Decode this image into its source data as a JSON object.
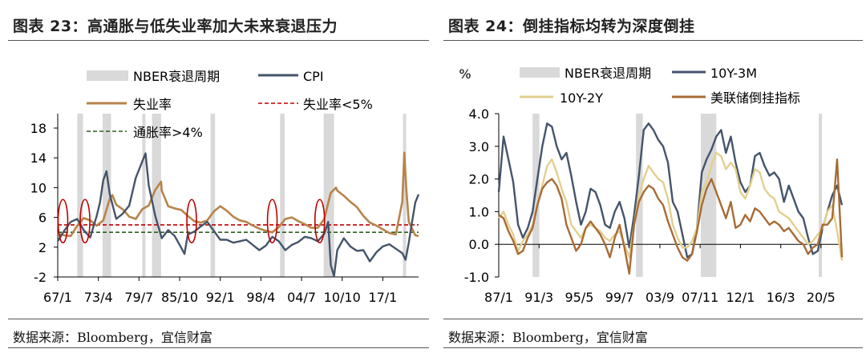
{
  "left_panel": {
    "title": "图表 23：高通胀与低失业率加大未来衰退压力",
    "source": "数据来源：Bloomberg，宜信财富"
  },
  "right_panel": {
    "title": "图表 24：倒挂指标均转为深度倒挂",
    "source": "数据来源：Bloomberg，宜信财富"
  },
  "colors": {
    "recession": "#d9d9d9",
    "cpi": "#44546a",
    "unemployment": "#b8834a",
    "threshold_unemp": "#c00000",
    "threshold_cpi": "#2e5e1e",
    "spread_10y3m": "#44546a",
    "spread_10y2y": "#e3cf8f",
    "fed_inversion": "#a86b35",
    "circle": "#c00000"
  },
  "chart_data": [
    {
      "type": "line",
      "ylim": [
        -2,
        18
      ],
      "yticks": [
        "18",
        "14",
        "10",
        "6",
        "2",
        "-2"
      ],
      "xticks": [
        "67/1",
        "73/4",
        "79/7",
        "85/10",
        "92/1",
        "98/4",
        "04/7",
        "10/10",
        "17/1"
      ],
      "x_range": [
        1967.0,
        2022.5
      ],
      "legend": [
        "NBER衰退周期",
        "CPI",
        "失业率",
        "失业率<5%",
        "通胀率>4%"
      ],
      "recessions": [
        [
          1970.0,
          1970.9
        ],
        [
          1973.9,
          1975.2
        ],
        [
          1980.0,
          1980.5
        ],
        [
          1981.5,
          1982.9
        ],
        [
          1990.5,
          1991.2
        ],
        [
          2001.2,
          2001.9
        ],
        [
          2007.9,
          2009.5
        ],
        [
          2020.1,
          2020.4
        ]
      ],
      "thresholds": {
        "unemployment": 5,
        "inflation": 4
      },
      "circled_x": [
        1967.8,
        1971.2,
        1987.6,
        2000.0,
        2007.3
      ],
      "series": [
        {
          "name": "CPI",
          "x": [
            1967,
            1968,
            1969,
            1970,
            1971,
            1972,
            1973,
            1973.5,
            1974,
            1974.5,
            1975,
            1976,
            1977,
            1978,
            1979,
            1980,
            1980.5,
            1981,
            1982,
            1983,
            1984,
            1985,
            1986,
            1986.5,
            1987,
            1988,
            1989,
            1990,
            1991,
            1992,
            1993,
            1994,
            1995,
            1996,
            1997,
            1998,
            1999,
            2000,
            2001,
            2002,
            2003,
            2004,
            2005,
            2006,
            2007,
            2008,
            2008.6,
            2009,
            2009.5,
            2010,
            2011,
            2012,
            2013,
            2014,
            2015,
            2016,
            2017,
            2018,
            2019,
            2020,
            2020.5,
            2021,
            2021.5,
            2022,
            2022.5
          ],
          "values": [
            2.8,
            4.2,
            5.4,
            5.8,
            4.3,
            3.3,
            6.2,
            8.0,
            11.0,
            12.2,
            9.1,
            5.8,
            6.5,
            7.6,
            11.3,
            13.5,
            14.6,
            10.3,
            6.2,
            3.2,
            4.3,
            3.5,
            1.9,
            1.1,
            3.7,
            4.1,
            4.8,
            5.4,
            4.2,
            3.0,
            3.0,
            2.6,
            2.8,
            3.0,
            2.3,
            1.6,
            2.2,
            3.4,
            2.8,
            1.6,
            2.3,
            2.7,
            3.4,
            3.2,
            2.8,
            3.8,
            5.4,
            -0.4,
            -1.9,
            1.6,
            3.2,
            2.1,
            1.5,
            1.6,
            0.1,
            1.3,
            2.1,
            2.4,
            1.8,
            1.2,
            0.3,
            2.6,
            5.4,
            8.0,
            9.1
          ]
        },
        {
          "name": "失业率",
          "x": [
            1967,
            1968,
            1969,
            1970,
            1971,
            1972,
            1973,
            1974,
            1975,
            1975.4,
            1976,
            1977,
            1978,
            1979,
            1980,
            1981,
            1982,
            1982.9,
            1983,
            1984,
            1985,
            1986,
            1987,
            1988,
            1989,
            1990,
            1991,
            1992,
            1993,
            1994,
            1995,
            1996,
            1997,
            1998,
            1999,
            2000,
            2001,
            2002,
            2003,
            2004,
            2005,
            2006,
            2007,
            2008,
            2009,
            2009.8,
            2010,
            2011,
            2012,
            2013,
            2014,
            2015,
            2016,
            2017,
            2018,
            2019,
            2020,
            2020.3,
            2020.6,
            2021,
            2022,
            2022.5
          ],
          "values": [
            3.8,
            3.6,
            3.5,
            4.9,
            5.9,
            5.6,
            4.9,
            5.6,
            8.5,
            9.0,
            7.7,
            7.1,
            6.1,
            5.8,
            7.1,
            7.6,
            9.7,
            10.8,
            9.6,
            7.5,
            7.2,
            7.0,
            6.2,
            5.5,
            5.3,
            5.6,
            6.8,
            7.5,
            6.9,
            6.1,
            5.6,
            5.4,
            4.9,
            4.5,
            4.2,
            4.0,
            4.7,
            5.8,
            6.0,
            5.5,
            5.1,
            4.6,
            4.6,
            5.8,
            9.3,
            10.0,
            9.6,
            8.9,
            8.1,
            7.4,
            6.2,
            5.3,
            4.9,
            4.4,
            3.9,
            3.7,
            8.1,
            14.7,
            10.0,
            5.4,
            3.6,
            3.5
          ]
        }
      ]
    },
    {
      "type": "line",
      "ylabel": "%",
      "ylim": [
        -1.0,
        4.0
      ],
      "yticks": [
        "4.0",
        "3.0",
        "2.0",
        "1.0",
        "0.0",
        "-1.0"
      ],
      "xticks": [
        "87/1",
        "91/3",
        "95/5",
        "99/7",
        "03/9",
        "07/11",
        "12/1",
        "16/3",
        "20/5"
      ],
      "x_range": [
        1987.0,
        2022.5
      ],
      "legend": [
        "NBER衰退周期",
        "10Y-3M",
        "10Y-2Y",
        "美联储倒挂指标"
      ],
      "recessions": [
        [
          1990.5,
          1991.2
        ],
        [
          2001.2,
          2001.9
        ],
        [
          2007.9,
          2009.5
        ],
        [
          2020.1,
          2020.4
        ]
      ],
      "series": [
        {
          "name": "10Y-3M",
          "x": [
            1987,
            1987.5,
            1988,
            1988.5,
            1989,
            1989.5,
            1990,
            1990.5,
            1991,
            1991.5,
            1992,
            1992.5,
            1993,
            1993.5,
            1994,
            1994.5,
            1995,
            1995.5,
            1996,
            1996.5,
            1997,
            1997.5,
            1998,
            1998.5,
            1999,
            1999.5,
            2000,
            2000.5,
            2001,
            2001.5,
            2002,
            2002.5,
            2003,
            2003.5,
            2004,
            2004.5,
            2005,
            2005.5,
            2006,
            2006.5,
            2007,
            2007.5,
            2008,
            2008.5,
            2009,
            2009.5,
            2010,
            2010.5,
            2011,
            2011.5,
            2012,
            2012.5,
            2013,
            2013.5,
            2014,
            2014.5,
            2015,
            2015.5,
            2016,
            2016.5,
            2017,
            2017.5,
            2018,
            2018.5,
            2019,
            2019.5,
            2020,
            2020.5,
            2021,
            2021.5,
            2022,
            2022.5
          ],
          "values": [
            1.6,
            3.3,
            2.6,
            1.9,
            0.6,
            0.2,
            0.5,
            1.0,
            2.0,
            3.0,
            3.7,
            3.6,
            3.0,
            2.6,
            2.8,
            2.1,
            1.3,
            0.6,
            1.0,
            1.7,
            1.6,
            1.2,
            0.6,
            0.5,
            1.0,
            1.3,
            0.8,
            -0.1,
            0.9,
            2.1,
            3.5,
            3.7,
            3.5,
            3.2,
            3.0,
            2.5,
            1.3,
            1.0,
            0.3,
            -0.4,
            -0.3,
            0.5,
            2.2,
            2.6,
            2.9,
            3.3,
            3.5,
            2.8,
            3.3,
            2.5,
            1.9,
            1.6,
            1.8,
            2.7,
            2.8,
            2.4,
            2.1,
            2.2,
            2.0,
            1.3,
            1.8,
            1.4,
            1.0,
            0.8,
            0.2,
            -0.3,
            -0.2,
            0.5,
            1.0,
            1.5,
            1.8,
            1.2
          ]
        },
        {
          "name": "10Y-2Y",
          "x": [
            1987,
            1987.5,
            1988,
            1988.5,
            1989,
            1989.5,
            1990,
            1990.5,
            1991,
            1991.5,
            1992,
            1992.5,
            1993,
            1993.5,
            1994,
            1994.5,
            1995,
            1995.5,
            1996,
            1996.5,
            1997,
            1997.5,
            1998,
            1998.5,
            1999,
            1999.5,
            2000,
            2000.5,
            2001,
            2001.5,
            2002,
            2002.5,
            2003,
            2003.5,
            2004,
            2004.5,
            2005,
            2005.5,
            2006,
            2006.5,
            2007,
            2007.5,
            2008,
            2008.5,
            2009,
            2009.5,
            2010,
            2010.5,
            2011,
            2011.5,
            2012,
            2012.5,
            2013,
            2013.5,
            2014,
            2014.5,
            2015,
            2015.5,
            2016,
            2016.5,
            2017,
            2017.5,
            2018,
            2018.5,
            2019,
            2019.5,
            2020,
            2020.5,
            2021,
            2021.5,
            2022,
            2022.5
          ],
          "values": [
            0.8,
            1.0,
            0.6,
            0.3,
            -0.2,
            0.1,
            0.3,
            0.6,
            1.2,
            1.8,
            2.4,
            2.6,
            2.2,
            1.7,
            1.3,
            0.6,
            0.4,
            0.2,
            0.5,
            0.6,
            0.5,
            0.4,
            0.2,
            0.1,
            0.3,
            0.4,
            0.0,
            -0.4,
            0.6,
            1.5,
            2.0,
            2.4,
            2.2,
            2.0,
            1.9,
            1.4,
            0.6,
            0.2,
            -0.1,
            -0.1,
            0.1,
            0.5,
            1.6,
            1.9,
            2.4,
            2.8,
            2.7,
            2.3,
            2.5,
            2.3,
            1.6,
            1.4,
            1.8,
            2.3,
            2.2,
            1.7,
            1.5,
            1.4,
            1.0,
            0.9,
            0.8,
            0.6,
            0.4,
            0.2,
            0.0,
            0.1,
            0.3,
            0.5,
            1.0,
            1.2,
            0.4,
            -0.5
          ]
        },
        {
          "name": "美联储倒挂指标",
          "x": [
            1987,
            1987.5,
            1988,
            1988.5,
            1989,
            1989.5,
            1990,
            1990.5,
            1991,
            1991.5,
            1992,
            1992.5,
            1993,
            1993.5,
            1994,
            1994.5,
            1995,
            1995.5,
            1996,
            1996.5,
            1997,
            1997.5,
            1998,
            1998.5,
            1999,
            1999.5,
            2000,
            2000.5,
            2001,
            2001.5,
            2002,
            2002.5,
            2003,
            2003.5,
            2004,
            2004.5,
            2005,
            2005.5,
            2006,
            2006.5,
            2007,
            2007.5,
            2008,
            2008.5,
            2009,
            2009.5,
            2010,
            2010.5,
            2011,
            2011.5,
            2012,
            2012.5,
            2013,
            2013.5,
            2014,
            2014.5,
            2015,
            2015.5,
            2016,
            2016.5,
            2017,
            2017.5,
            2018,
            2018.5,
            2019,
            2019.5,
            2020,
            2020.5,
            2021,
            2021.5,
            2022,
            2022.5
          ],
          "values": [
            0.9,
            0.8,
            0.4,
            0.1,
            -0.3,
            -0.2,
            0.2,
            0.5,
            1.2,
            1.7,
            1.9,
            2.0,
            1.8,
            1.4,
            0.6,
            0.2,
            -0.2,
            0.0,
            0.5,
            0.7,
            0.5,
            0.3,
            0.0,
            -0.4,
            0.2,
            0.6,
            -0.1,
            -0.9,
            0.6,
            1.3,
            1.6,
            1.8,
            1.7,
            1.4,
            1.2,
            0.7,
            0.3,
            -0.1,
            -0.4,
            -0.5,
            -0.3,
            0.4,
            1.2,
            1.7,
            2.0,
            1.6,
            1.2,
            0.8,
            1.3,
            0.5,
            0.6,
            0.9,
            0.7,
            1.1,
            1.0,
            0.8,
            0.6,
            0.7,
            0.6,
            0.4,
            0.5,
            0.3,
            0.1,
            0.0,
            -0.3,
            -0.1,
            0.0,
            0.6,
            0.6,
            0.8,
            2.6,
            -0.4
          ]
        }
      ]
    }
  ]
}
